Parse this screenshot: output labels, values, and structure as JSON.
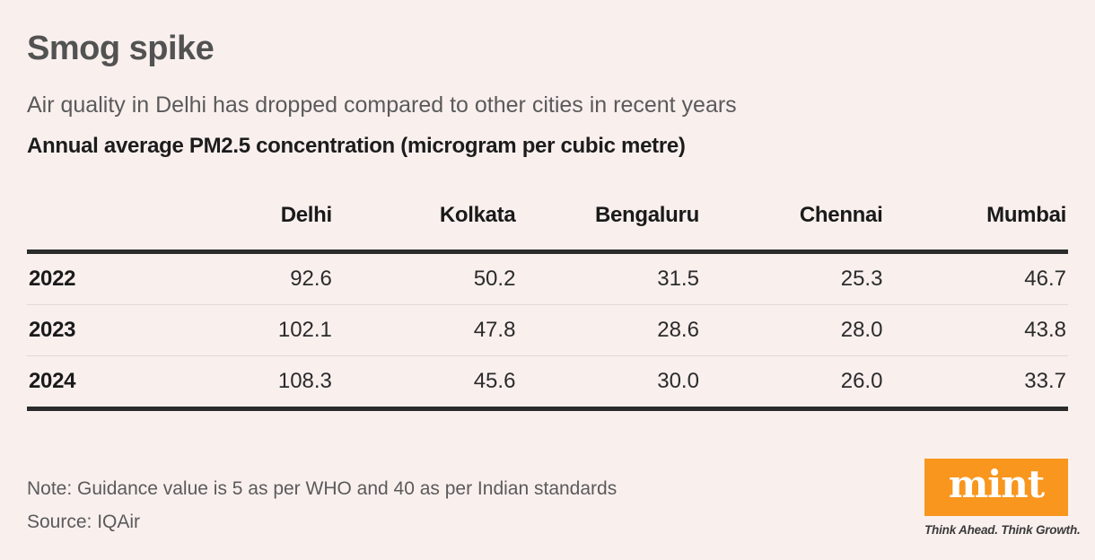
{
  "colors": {
    "background": "#f9f0ee",
    "rule_dark": "#2b2b2b",
    "rule_light": "#e2d9d6",
    "logo_orange": "#f8961e",
    "title_gray": "#525252"
  },
  "header": {
    "title": "Smog spike",
    "subtitle": "Air quality in Delhi has dropped compared to other cities in recent years",
    "measure_label": "Annual average PM2.5 concentration (microgram per cubic metre)"
  },
  "chart_data": {
    "type": "table",
    "title": "Annual average PM2.5 concentration (microgram per cubic metre)",
    "columns": [
      "",
      "Delhi",
      "Kolkata",
      "Bengaluru",
      "Chennai",
      "Mumbai"
    ],
    "rows": [
      {
        "year": "2022",
        "values": [
          "92.6",
          "50.2",
          "31.5",
          "25.3",
          "46.7"
        ]
      },
      {
        "year": "2023",
        "values": [
          "102.1",
          "47.8",
          "28.6",
          "28.0",
          "43.8"
        ]
      },
      {
        "year": "2024",
        "values": [
          "108.3",
          "45.6",
          "30.0",
          "26.0",
          "33.7"
        ]
      }
    ]
  },
  "footer": {
    "note": "Note: Guidance value is 5 as per WHO and 40 as per Indian standards",
    "source": "Source: IQAir",
    "logo_text": "mint",
    "tagline": "Think Ahead. Think Growth."
  }
}
